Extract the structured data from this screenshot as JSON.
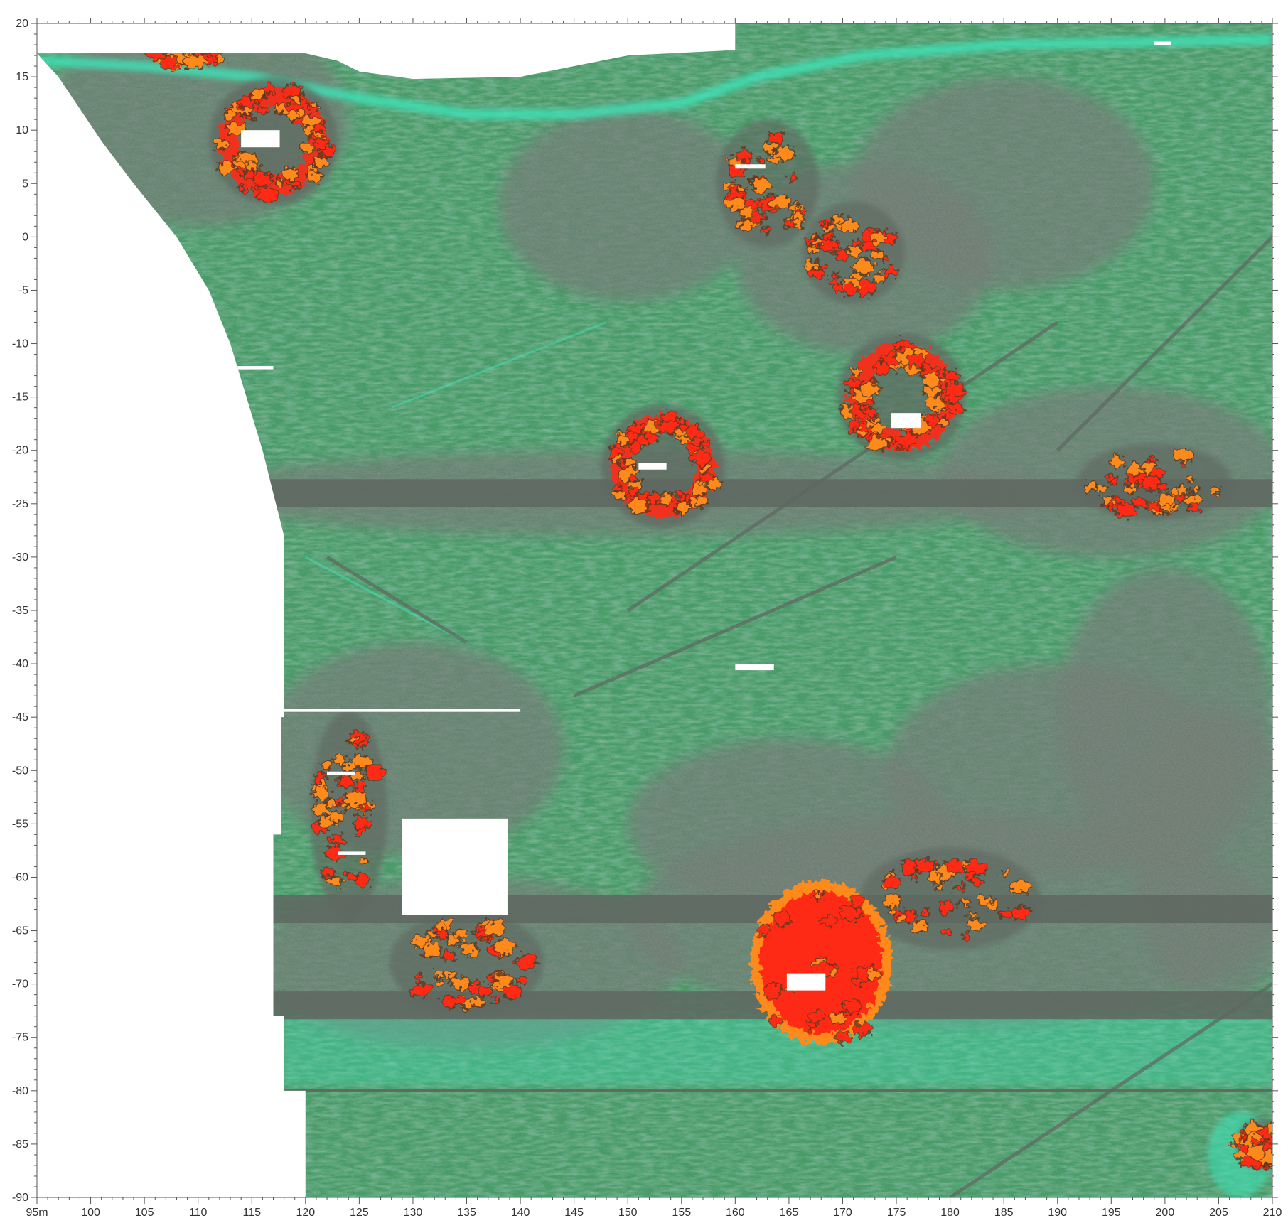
{
  "axes": {
    "x": {
      "min": 95,
      "max": 210,
      "ticks": [
        {
          "v": 95,
          "label": "95m"
        },
        {
          "v": 100,
          "label": "100"
        },
        {
          "v": 105,
          "label": "105"
        },
        {
          "v": 110,
          "label": "110"
        },
        {
          "v": 115,
          "label": "115"
        },
        {
          "v": 120,
          "label": "120"
        },
        {
          "v": 125,
          "label": "125"
        },
        {
          "v": 130,
          "label": "130"
        },
        {
          "v": 135,
          "label": "135"
        },
        {
          "v": 140,
          "label": "140"
        },
        {
          "v": 145,
          "label": "145"
        },
        {
          "v": 150,
          "label": "150"
        },
        {
          "v": 155,
          "label": "155"
        },
        {
          "v": 160,
          "label": "160"
        },
        {
          "v": 165,
          "label": "165"
        },
        {
          "v": 170,
          "label": "170"
        },
        {
          "v": 175,
          "label": "175"
        },
        {
          "v": 180,
          "label": "180"
        },
        {
          "v": 185,
          "label": "185"
        },
        {
          "v": 190,
          "label": "190"
        },
        {
          "v": 195,
          "label": "195"
        },
        {
          "v": 200,
          "label": "200"
        },
        {
          "v": 205,
          "label": "205"
        },
        {
          "v": 210,
          "label": "210"
        }
      ]
    },
    "y": {
      "min": -90,
      "max": 20,
      "ticks": [
        {
          "v": 20,
          "label": "20"
        },
        {
          "v": 15,
          "label": "15"
        },
        {
          "v": 10,
          "label": "10"
        },
        {
          "v": 5,
          "label": "5"
        },
        {
          "v": 0,
          "label": "0"
        },
        {
          "v": -5,
          "label": "-5"
        },
        {
          "v": -10,
          "label": "-10"
        },
        {
          "v": -15,
          "label": "-15"
        },
        {
          "v": -20,
          "label": "-20"
        },
        {
          "v": -25,
          "label": "-25"
        },
        {
          "v": -30,
          "label": "-30"
        },
        {
          "v": -35,
          "label": "-35"
        },
        {
          "v": -40,
          "label": "-40"
        },
        {
          "v": -45,
          "label": "-45"
        },
        {
          "v": -50,
          "label": "-50"
        },
        {
          "v": -55,
          "label": "-55"
        },
        {
          "v": -60,
          "label": "-60"
        },
        {
          "v": -65,
          "label": "-65"
        },
        {
          "v": -70,
          "label": "-70"
        },
        {
          "v": -75,
          "label": "-75"
        },
        {
          "v": -80,
          "label": "-80"
        },
        {
          "v": -85,
          "label": "-85"
        },
        {
          "v": -90,
          "label": "-90"
        }
      ]
    }
  },
  "colors": {
    "background": "#ffffff",
    "survey_green": "#3f9a62",
    "survey_dark_grey": "#5e6760",
    "survey_grey": "#6f7a72",
    "survey_cyan": "#3fe0b6",
    "anomaly_orange": "#ff8a1e",
    "anomaly_red": "#ff2b16",
    "anomaly_halo": "#5b3a20",
    "axis": "#555555",
    "label": "#333333"
  },
  "features": {
    "ring_anomalies": [
      {
        "id": "ring-nw",
        "x": 117,
        "y": 9,
        "r": 5.2
      },
      {
        "id": "ring-center",
        "x": 153.3,
        "y": -21.5,
        "r": 5.0
      },
      {
        "id": "ring-east",
        "x": 175.5,
        "y": -15,
        "r": 5.2
      }
    ],
    "cluster_anomalies": [
      {
        "id": "cluster-north",
        "x": 163,
        "y": 5,
        "rx": 4,
        "ry": 5
      },
      {
        "id": "cluster-north-b",
        "x": 171,
        "y": -1.5,
        "rx": 4,
        "ry": 4
      },
      {
        "id": "cluster-far-east",
        "x": 199,
        "y": -23,
        "rx": 6,
        "ry": 3
      },
      {
        "id": "cluster-west-column",
        "x": 124,
        "y": -54,
        "rx": 3,
        "ry": 8
      },
      {
        "id": "cluster-south-west",
        "x": 135,
        "y": -68,
        "rx": 6,
        "ry": 4
      },
      {
        "id": "cluster-south-mid",
        "x": 180,
        "y": -62,
        "rx": 7,
        "ry": 4
      },
      {
        "id": "cluster-south-east",
        "x": 209,
        "y": -85,
        "rx": 2,
        "ry": 2
      }
    ],
    "solid_anomalies": [
      {
        "id": "blob-south-center",
        "x": 168,
        "y": -68,
        "rx": 6,
        "ry": 7
      },
      {
        "id": "blob-top-edge",
        "x": 109,
        "y": 17,
        "rx": 3,
        "ry": 1
      }
    ],
    "dark_bands_y": [
      -24,
      -63,
      -72
    ],
    "linear_features": [
      {
        "x1": 150,
        "y1": -35,
        "x2": 190,
        "y2": -8
      },
      {
        "x1": 145,
        "y1": -43,
        "x2": 175,
        "y2": -30
      },
      {
        "x1": 122,
        "y1": -30,
        "x2": 135,
        "y2": -38
      },
      {
        "x1": 190,
        "y1": -20,
        "x2": 210,
        "y2": 0
      },
      {
        "x1": 180,
        "y1": -90,
        "x2": 210,
        "y2": -70
      }
    ],
    "white_gaps": [
      {
        "x": 114,
        "y": 10,
        "w": 3.6,
        "h": 1.6
      },
      {
        "x": 160,
        "y": 6.8,
        "w": 2.8,
        "h": 0.4
      },
      {
        "x": 151,
        "y": -21.2,
        "w": 2.6,
        "h": 0.6
      },
      {
        "x": 174.5,
        "y": -16.5,
        "w": 2.8,
        "h": 1.4
      },
      {
        "x": 160,
        "y": -40,
        "w": 3.6,
        "h": 0.6
      },
      {
        "x": 113,
        "y": -12.1,
        "w": 4,
        "h": 0.3
      },
      {
        "x": 118,
        "y": -44.2,
        "w": 22,
        "h": 0.3
      },
      {
        "x": 122,
        "y": -50.1,
        "w": 2.6,
        "h": 0.3
      },
      {
        "x": 123,
        "y": -57.6,
        "w": 2.6,
        "h": 0.3
      },
      {
        "x": 164.8,
        "y": -69,
        "w": 3.6,
        "h": 1.6
      },
      {
        "x": 199,
        "y": 18.3,
        "w": 1.6,
        "h": 0.3
      }
    ]
  }
}
